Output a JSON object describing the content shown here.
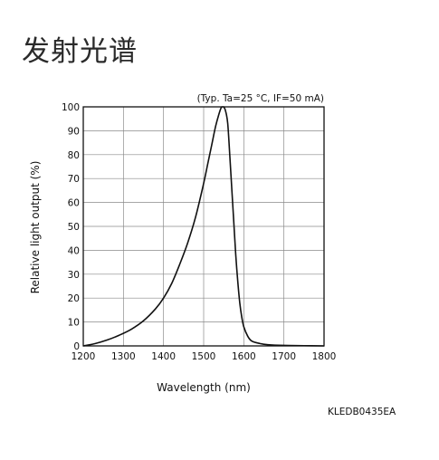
{
  "page": {
    "title": "发射光谱",
    "figure_code": "KLEDB0435EA"
  },
  "chart_data": {
    "type": "line",
    "title": "",
    "condition_note": "(Typ. Ta=25 °C, IF=50 mA)",
    "xlabel": "Wavelength (nm)",
    "ylabel": "Relative light output (%)",
    "xlim": [
      1200,
      1800
    ],
    "ylim": [
      0,
      100
    ],
    "x_ticks": [
      1200,
      1300,
      1400,
      1500,
      1600,
      1700,
      1800
    ],
    "y_ticks": [
      0,
      10,
      20,
      30,
      40,
      50,
      60,
      70,
      80,
      90,
      100
    ],
    "grid": true,
    "line_color": "#111111",
    "series": [
      {
        "x": [
          1200,
          1230,
          1260,
          1290,
          1320,
          1350,
          1380,
          1400,
          1420,
          1440,
          1460,
          1480,
          1500,
          1510,
          1520,
          1530,
          1540,
          1545,
          1550,
          1555,
          1560,
          1565,
          1570,
          1575,
          1580,
          1585,
          1590,
          1595,
          1600,
          1610,
          1620,
          1640,
          1660,
          1700,
          1750,
          1800
        ],
        "y": [
          0,
          1,
          2.5,
          4.5,
          7,
          10.5,
          15.5,
          20,
          26,
          34,
          43,
          54,
          68,
          76,
          84,
          92,
          98,
          100,
          100,
          98,
          93,
          80,
          66,
          52,
          38,
          27,
          18,
          12,
          8,
          4,
          2,
          1,
          0.5,
          0.2,
          0.1,
          0
        ]
      }
    ]
  }
}
